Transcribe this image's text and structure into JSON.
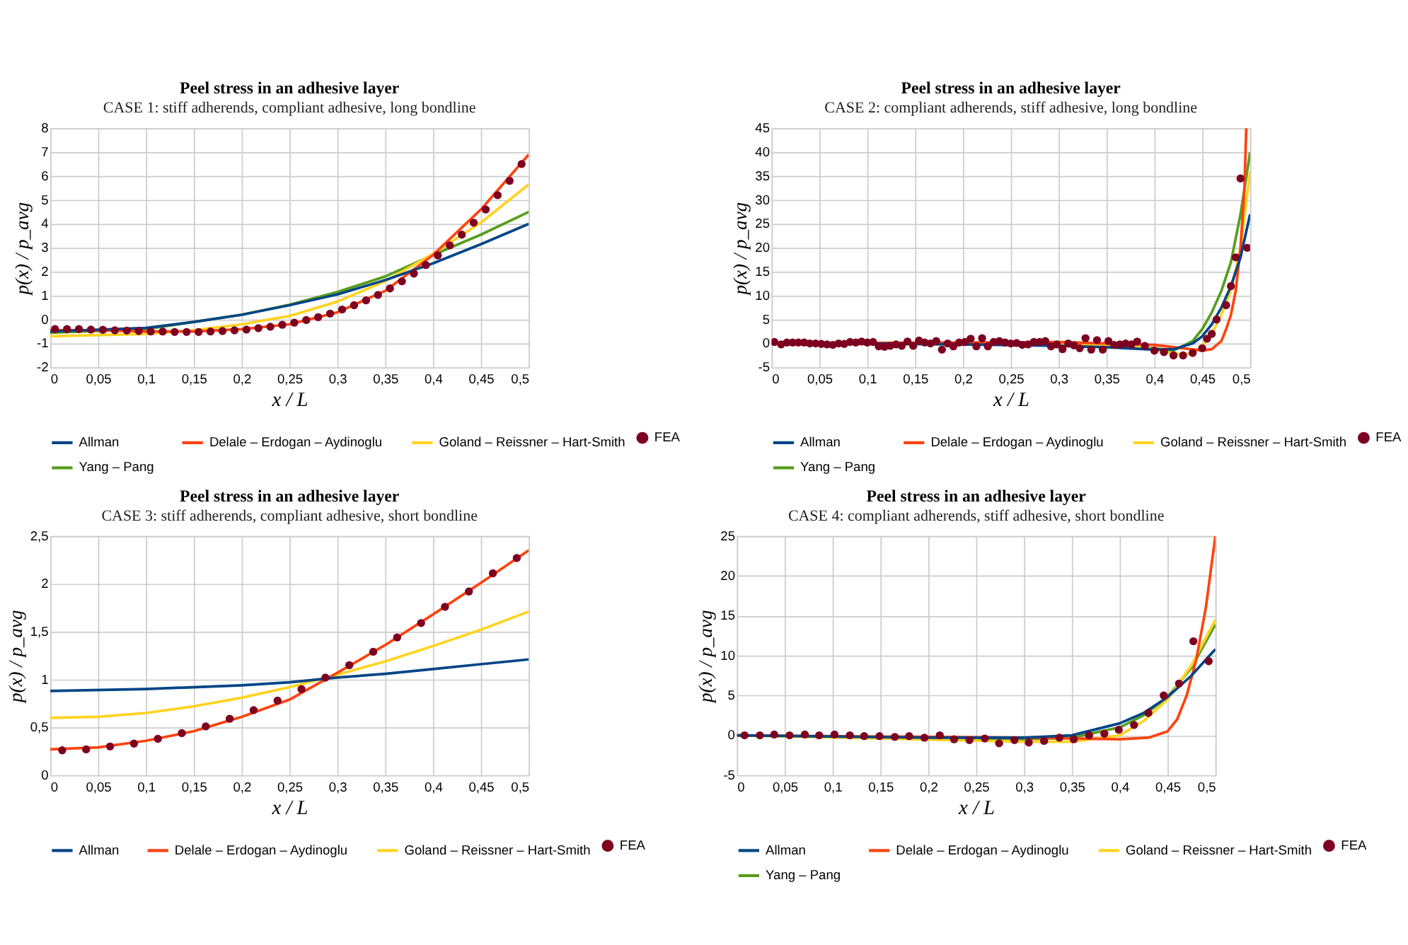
{
  "chart_data": [
    {
      "type": "line",
      "title": "Peel stress in an adhesive layer",
      "subtitle": "CASE 1: stiff adherends, compliant adhesive, long bondline",
      "xlabel": "x / L",
      "ylabel": "p(x) / p_avg",
      "grid": true,
      "legend": "bottom",
      "xlim": [
        0,
        0.5
      ],
      "xticks": [
        0,
        {
          "value": 0.05,
          "label": "0,05"
        },
        {
          "value": 0.1,
          "label": "0,1"
        },
        {
          "value": 0.15,
          "label": "0,15"
        },
        {
          "value": 0.2,
          "label": "0,2"
        },
        {
          "value": 0.25,
          "label": "0,25"
        },
        {
          "value": 0.3,
          "label": "0,3"
        },
        {
          "value": 0.35,
          "label": "0,35"
        },
        {
          "value": 0.4,
          "label": "0,4"
        },
        {
          "value": 0.45,
          "label": "0,45"
        },
        {
          "value": 0.5,
          "label": "0,5"
        }
      ],
      "ylim": [
        -2,
        8
      ],
      "yticks": [
        -2,
        -1,
        0,
        1,
        2,
        3,
        4,
        5,
        6,
        7,
        8
      ],
      "series": [
        {
          "name": "Allman",
          "type": "line",
          "color": "#004586",
          "x": [
            0,
            0.1,
            0.15,
            0.2,
            0.25,
            0.3,
            0.35,
            0.4,
            0.45,
            0.5
          ],
          "values": [
            -0.5,
            -0.35,
            -0.1,
            0.2,
            0.6,
            1.05,
            1.65,
            2.35,
            3.15,
            4.0
          ]
        },
        {
          "name": "Delale – Erdogan – Aydinoglu",
          "type": "line",
          "color": "#ff420e",
          "x": [
            0,
            0.05,
            0.1,
            0.15,
            0.2,
            0.25,
            0.3,
            0.35,
            0.4,
            0.45,
            0.5
          ],
          "values": [
            -0.45,
            -0.45,
            -0.5,
            -0.5,
            -0.4,
            -0.2,
            0.3,
            1.2,
            2.7,
            4.6,
            6.9
          ]
        },
        {
          "name": "Goland – Reissner – Hart-Smith",
          "type": "line",
          "color": "#ffd320",
          "x": [
            0,
            0.1,
            0.15,
            0.2,
            0.25,
            0.3,
            0.35,
            0.4,
            0.45,
            0.5
          ],
          "values": [
            -0.7,
            -0.6,
            -0.45,
            -0.2,
            0.15,
            0.75,
            1.6,
            2.75,
            4.05,
            5.65
          ]
        },
        {
          "name": "Yang – Pang",
          "type": "line",
          "color": "#579d1c",
          "x": [
            0,
            0.1,
            0.15,
            0.2,
            0.25,
            0.3,
            0.35,
            0.4,
            0.45,
            0.5
          ],
          "values": [
            -0.55,
            -0.4,
            -0.1,
            0.2,
            0.62,
            1.15,
            1.8,
            2.7,
            3.55,
            4.5
          ]
        },
        {
          "name": "FEA",
          "type": "scatter",
          "marker": "circle",
          "color": "#7e0021",
          "x": [
            0.005,
            0.0175,
            0.03,
            0.0425,
            0.055,
            0.0675,
            0.08,
            0.0925,
            0.105,
            0.1175,
            0.13,
            0.1425,
            0.155,
            0.1675,
            0.18,
            0.1925,
            0.205,
            0.2175,
            0.23,
            0.2425,
            0.255,
            0.2675,
            0.28,
            0.2925,
            0.305,
            0.3175,
            0.33,
            0.3425,
            0.355,
            0.3675,
            0.38,
            0.3925,
            0.405,
            0.4175,
            0.43,
            0.4425,
            0.455,
            0.4675,
            0.48,
            0.4925
          ],
          "values": [
            -0.4,
            -0.4,
            -0.4,
            -0.42,
            -0.43,
            -0.45,
            -0.46,
            -0.48,
            -0.5,
            -0.5,
            -0.52,
            -0.52,
            -0.52,
            -0.5,
            -0.48,
            -0.45,
            -0.42,
            -0.36,
            -0.3,
            -0.22,
            -0.13,
            -0.02,
            0.1,
            0.25,
            0.42,
            0.6,
            0.8,
            1.03,
            1.3,
            1.6,
            1.92,
            2.28,
            2.68,
            3.1,
            3.55,
            4.05,
            4.6,
            5.2,
            5.8,
            6.5
          ]
        }
      ]
    },
    {
      "type": "line",
      "title": "Peel stress in an adhesive layer",
      "subtitle": "CASE 2: compliant adherends, stiff adhesive, long bondline",
      "xlabel": "x / L",
      "ylabel": "p(x) / p_avg",
      "grid": true,
      "legend": "bottom",
      "xlim": [
        0,
        0.5
      ],
      "xticks": [
        0,
        {
          "value": 0.05,
          "label": "0,05"
        },
        {
          "value": 0.1,
          "label": "0,1"
        },
        {
          "value": 0.15,
          "label": "0,15"
        },
        {
          "value": 0.2,
          "label": "0,2"
        },
        {
          "value": 0.25,
          "label": "0,25"
        },
        {
          "value": 0.3,
          "label": "0,3"
        },
        {
          "value": 0.35,
          "label": "0,35"
        },
        {
          "value": 0.4,
          "label": "0,4"
        },
        {
          "value": 0.45,
          "label": "0,45"
        },
        {
          "value": 0.5,
          "label": "0,5"
        }
      ],
      "ylim": [
        -5,
        45
      ],
      "yticks": [
        -5,
        0,
        5,
        10,
        15,
        20,
        25,
        30,
        35,
        40,
        45
      ],
      "series": [
        {
          "name": "Allman",
          "type": "line",
          "color": "#004586",
          "x": [
            0,
            0.1,
            0.2,
            0.3,
            0.35,
            0.4,
            0.42,
            0.44,
            0.45,
            0.46,
            0.47,
            0.48,
            0.49,
            0.5
          ],
          "values": [
            0,
            0,
            -0.2,
            -0.5,
            -0.8,
            -1.3,
            -1.2,
            0,
            1.5,
            4,
            7.5,
            12,
            18,
            27
          ]
        },
        {
          "name": "Delale – Erdogan – Aydinoglu",
          "type": "line",
          "color": "#ff420e",
          "x": [
            0,
            0.3,
            0.4,
            0.43,
            0.45,
            0.46,
            0.47,
            0.475,
            0.48,
            0.485,
            0.49,
            0.494,
            0.496
          ],
          "values": [
            0,
            0.3,
            -0.3,
            -1,
            -1.5,
            -1.2,
            0.5,
            3,
            6,
            11,
            20,
            32,
            45
          ]
        },
        {
          "name": "Goland – Reissner – Hart-Smith",
          "type": "line",
          "color": "#ffd320",
          "x": [
            0,
            0.3,
            0.38,
            0.41,
            0.43,
            0.44,
            0.45,
            0.46,
            0.47,
            0.48,
            0.49,
            0.5
          ],
          "values": [
            0,
            0,
            -0.5,
            -1.8,
            -2.3,
            -2,
            -0.5,
            2,
            6,
            11,
            20,
            36
          ]
        },
        {
          "name": "Yang – Pang",
          "type": "line",
          "color": "#579d1c",
          "x": [
            0,
            0.3,
            0.4,
            0.42,
            0.44,
            0.45,
            0.46,
            0.47,
            0.48,
            0.49,
            0.5
          ],
          "values": [
            0,
            -0.3,
            -1,
            -1.5,
            0.5,
            3,
            6.5,
            11,
            17,
            27,
            40
          ]
        },
        {
          "name": "FEA",
          "type": "scatter",
          "marker": "circle",
          "color": "#7e0021",
          "x": [
            0.003,
            0.01,
            0.016,
            0.022,
            0.028,
            0.034,
            0.04,
            0.046,
            0.052,
            0.058,
            0.064,
            0.07,
            0.076,
            0.082,
            0.088,
            0.094,
            0.1,
            0.106,
            0.112,
            0.118,
            0.124,
            0.13,
            0.136,
            0.142,
            0.148,
            0.154,
            0.16,
            0.166,
            0.172,
            0.178,
            0.184,
            0.19,
            0.196,
            0.202,
            0.208,
            0.214,
            0.22,
            0.226,
            0.232,
            0.238,
            0.244,
            0.25,
            0.256,
            0.262,
            0.268,
            0.274,
            0.28,
            0.286,
            0.292,
            0.298,
            0.304,
            0.31,
            0.316,
            0.322,
            0.328,
            0.334,
            0.34,
            0.346,
            0.352,
            0.358,
            0.364,
            0.37,
            0.376,
            0.382,
            0.39,
            0.4,
            0.41,
            0.42,
            0.43,
            0.44,
            0.45,
            0.455,
            0.46,
            0.465,
            0.475,
            0.48,
            0.485,
            0.49,
            0.497
          ],
          "values": [
            0.3,
            -0.2,
            0.2,
            0.2,
            0.2,
            0.2,
            0,
            0,
            -0.1,
            -0.2,
            -0.3,
            0,
            -0.1,
            0.3,
            0.2,
            0.4,
            0.2,
            0.3,
            -0.6,
            -0.7,
            -0.5,
            -0.2,
            -0.5,
            0.4,
            -0.5,
            0.6,
            0.2,
            0,
            0.5,
            -1.3,
            0,
            -0.6,
            0.2,
            0.3,
            1,
            -0.6,
            1.1,
            -0.6,
            0.3,
            0.5,
            0.2,
            0,
            0.1,
            -0.3,
            -0.2,
            0.3,
            0.3,
            0.5,
            -0.6,
            -0.2,
            -1.2,
            0,
            -0.4,
            -1,
            1.1,
            -1.3,
            0.7,
            -1.3,
            0.5,
            -0.3,
            -0.2,
            0,
            -0.2,
            0.4,
            -0.5,
            -1.5,
            -1.8,
            -2.5,
            -2.5,
            -2,
            -1,
            1,
            2,
            5,
            8,
            12,
            18,
            34.5,
            20
          ]
        }
      ]
    },
    {
      "type": "line",
      "title": "Peel stress in an adhesive layer",
      "subtitle": "CASE 3: stiff adherends, compliant adhesive, short bondline",
      "xlabel": "x / L",
      "ylabel": "p(x) / p_avg",
      "grid": true,
      "legend": "bottom",
      "xlim": [
        0,
        0.5
      ],
      "xticks": [
        0,
        {
          "value": 0.05,
          "label": "0,05"
        },
        {
          "value": 0.1,
          "label": "0,1"
        },
        {
          "value": 0.15,
          "label": "0,15"
        },
        {
          "value": 0.2,
          "label": "0,2"
        },
        {
          "value": 0.25,
          "label": "0,25"
        },
        {
          "value": 0.3,
          "label": "0,3"
        },
        {
          "value": 0.35,
          "label": "0,35"
        },
        {
          "value": 0.4,
          "label": "0,4"
        },
        {
          "value": 0.45,
          "label": "0,45"
        },
        {
          "value": 0.5,
          "label": "0,5"
        }
      ],
      "ylim": [
        0,
        2.5
      ],
      "yticks": [
        0,
        {
          "value": 0.5,
          "label": "0,5"
        },
        1,
        {
          "value": 1.5,
          "label": "1,5"
        },
        2,
        {
          "value": 2.5,
          "label": "2,5"
        }
      ],
      "series": [
        {
          "name": "Allman",
          "type": "line",
          "color": "#004586",
          "x": [
            0,
            0.1,
            0.2,
            0.25,
            0.3,
            0.35,
            0.4,
            0.45,
            0.5
          ],
          "values": [
            0.88,
            0.9,
            0.94,
            0.97,
            1.02,
            1.06,
            1.11,
            1.16,
            1.21
          ]
        },
        {
          "name": "Delale – Erdogan – Aydinoglu",
          "type": "line",
          "color": "#ff420e",
          "x": [
            0,
            0.05,
            0.1,
            0.15,
            0.2,
            0.25,
            0.3,
            0.35,
            0.4,
            0.45,
            0.5
          ],
          "values": [
            0.27,
            0.29,
            0.36,
            0.46,
            0.61,
            0.79,
            1.07,
            1.36,
            1.68,
            2.01,
            2.35
          ]
        },
        {
          "name": "Goland – Reissner – Hart-Smith",
          "type": "line",
          "color": "#ffd320",
          "x": [
            0,
            0.05,
            0.1,
            0.15,
            0.2,
            0.25,
            0.3,
            0.35,
            0.4,
            0.45,
            0.5
          ],
          "values": [
            0.6,
            0.61,
            0.65,
            0.72,
            0.81,
            0.92,
            1.05,
            1.19,
            1.35,
            1.52,
            1.71
          ]
        },
        {
          "name": "FEA",
          "type": "scatter",
          "marker": "circle",
          "color": "#7e0021",
          "x": [
            0.0125,
            0.0375,
            0.0625,
            0.0875,
            0.1125,
            0.1375,
            0.1625,
            0.1875,
            0.2125,
            0.2375,
            0.2625,
            0.2875,
            0.3125,
            0.3375,
            0.3625,
            0.3875,
            0.4125,
            0.4375,
            0.4625,
            0.4875
          ],
          "values": [
            0.26,
            0.27,
            0.3,
            0.33,
            0.38,
            0.44,
            0.51,
            0.59,
            0.68,
            0.78,
            0.9,
            1.02,
            1.15,
            1.29,
            1.44,
            1.59,
            1.76,
            1.92,
            2.11,
            2.27
          ]
        }
      ]
    },
    {
      "type": "line",
      "title": "Peel stress in an adhesive layer",
      "subtitle": "CASE 4: compliant adherends, stiff adhesive, short bondline",
      "xlabel": "x / L",
      "ylabel": "p(x) / p_avg",
      "grid": true,
      "legend": "bottom",
      "xlim": [
        0,
        0.5
      ],
      "xticks": [
        0,
        {
          "value": 0.05,
          "label": "0,05"
        },
        {
          "value": 0.1,
          "label": "0,1"
        },
        {
          "value": 0.15,
          "label": "0,15"
        },
        {
          "value": 0.2,
          "label": "0,2"
        },
        {
          "value": 0.25,
          "label": "0,25"
        },
        {
          "value": 0.3,
          "label": "0,3"
        },
        {
          "value": 0.35,
          "label": "0,35"
        },
        {
          "value": 0.4,
          "label": "0,4"
        },
        {
          "value": 0.45,
          "label": "0,45"
        },
        {
          "value": 0.5,
          "label": "0,5"
        }
      ],
      "ylim": [
        -5,
        25
      ],
      "yticks": [
        -5,
        0,
        5,
        10,
        15,
        20,
        25
      ],
      "series": [
        {
          "name": "Allman",
          "type": "line",
          "color": "#004586",
          "x": [
            0,
            0.2,
            0.3,
            0.35,
            0.4,
            0.425,
            0.45,
            0.475,
            0.5
          ],
          "values": [
            0,
            -0.3,
            -0.3,
            0,
            1.5,
            2.8,
            4.8,
            7.5,
            10.8
          ]
        },
        {
          "name": "Delale – Erdogan – Aydinoglu",
          "type": "line",
          "color": "#ff420e",
          "x": [
            0,
            0.3,
            0.4,
            0.43,
            0.45,
            0.46,
            0.47,
            0.48,
            0.49,
            0.5
          ],
          "values": [
            0,
            -0.3,
            -0.5,
            -0.3,
            0.5,
            2,
            5,
            9.5,
            16,
            25
          ]
        },
        {
          "name": "Goland – Reissner – Hart-Smith",
          "type": "line",
          "color": "#ffd320",
          "x": [
            0,
            0.3,
            0.35,
            0.4,
            0.425,
            0.45,
            0.475,
            0.5
          ],
          "values": [
            0,
            -0.8,
            -0.8,
            0,
            1.8,
            4.5,
            8.8,
            14.5
          ]
        },
        {
          "name": "Yang – Pang",
          "type": "line",
          "color": "#579d1c",
          "x": [
            0,
            0.3,
            0.35,
            0.4,
            0.425,
            0.45,
            0.475,
            0.5
          ],
          "values": [
            0,
            -0.5,
            -0.3,
            1,
            2.5,
            4.8,
            8.5,
            13.9
          ]
        },
        {
          "name": "FEA",
          "type": "scatter",
          "marker": "circle",
          "color": "#7e0021",
          "x": [
            0.008,
            0.024,
            0.039,
            0.055,
            0.071,
            0.086,
            0.102,
            0.118,
            0.133,
            0.149,
            0.165,
            0.18,
            0.196,
            0.212,
            0.227,
            0.243,
            0.259,
            0.274,
            0.29,
            0.305,
            0.321,
            0.337,
            0.352,
            0.368,
            0.384,
            0.399,
            0.415,
            0.43,
            0.446,
            0.462,
            0.477,
            0.493
          ],
          "values": [
            0,
            0,
            0.1,
            0,
            0.1,
            0,
            0.1,
            0,
            -0.1,
            -0.1,
            -0.2,
            -0.1,
            -0.3,
            0,
            -0.5,
            -0.6,
            -0.4,
            -1,
            -0.6,
            -0.9,
            -0.7,
            -0.3,
            -0.5,
            0,
            0.2,
            0.7,
            1.3,
            2.8,
            5,
            6.5,
            11.8,
            9.3
          ]
        }
      ]
    }
  ]
}
